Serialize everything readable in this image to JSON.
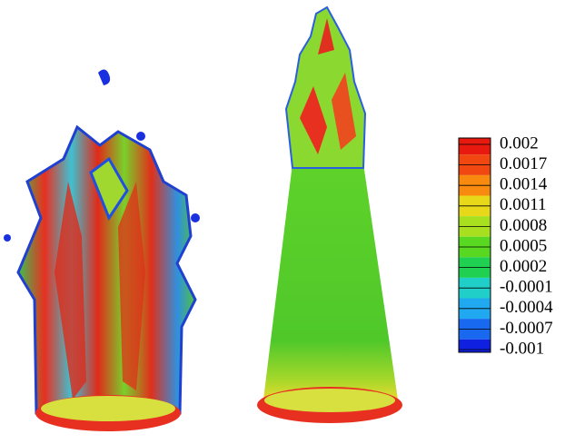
{
  "colorbar": {
    "labels": [
      "0.002",
      "0.0017",
      "0.0014",
      "0.0011",
      "0.0008",
      "0.0005",
      "0.0002",
      "-0.0001",
      "-0.0004",
      "-0.0007",
      "-0.001"
    ]
  }
}
